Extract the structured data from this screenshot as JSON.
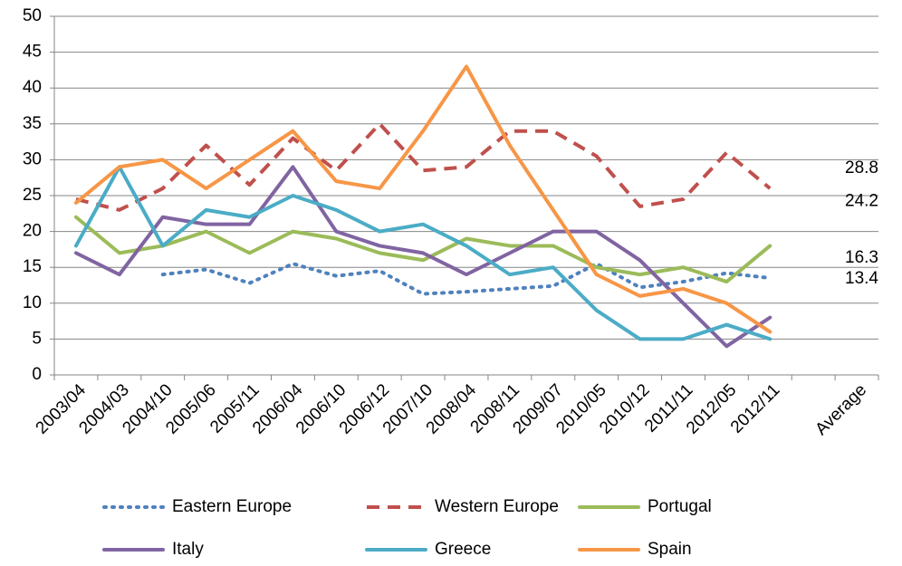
{
  "chart_data": {
    "type": "line",
    "categories": [
      "2003/04",
      "2004/03",
      "2004/10",
      "2005/06",
      "2005/11",
      "2006/04",
      "2006/10",
      "2006/12",
      "2007/10",
      "2008/04",
      "2008/11",
      "2009/07",
      "2010/05",
      "2010/12",
      "2011/11",
      "2012/05",
      "2012/11",
      null,
      "Average"
    ],
    "ylim": [
      0,
      50
    ],
    "yticks": [
      0,
      5,
      10,
      15,
      20,
      25,
      30,
      35,
      40,
      45,
      50
    ],
    "grid": true,
    "series": [
      {
        "name": "Eastern Europe",
        "color": "#4f81bd",
        "dash": "dotted",
        "values": [
          null,
          null,
          14,
          14.7,
          12.8,
          15.5,
          13.8,
          14.5,
          11.3,
          11.6,
          12,
          12.4,
          15.5,
          12.2,
          13,
          14.2,
          13.5,
          null,
          13.4
        ]
      },
      {
        "name": "Western Europe",
        "color": "#c0504d",
        "dash": "dashed",
        "values": [
          24.5,
          23,
          26,
          32,
          26.5,
          33,
          28.5,
          35,
          28.5,
          29,
          34,
          34,
          30.5,
          23.5,
          24.5,
          31,
          26,
          null,
          28.8
        ]
      },
      {
        "name": "Portugal",
        "color": "#9bbb59",
        "dash": "solid",
        "values": [
          22,
          17,
          18,
          20,
          17,
          20,
          19,
          17,
          16,
          19,
          18,
          18,
          15,
          14,
          15,
          13,
          18,
          null,
          null
        ]
      },
      {
        "name": "Italy",
        "color": "#8064a2",
        "dash": "solid",
        "values": [
          17,
          14,
          22,
          21,
          21,
          29,
          20,
          18,
          17,
          14,
          17,
          20,
          20,
          16,
          10,
          4,
          8,
          null,
          null
        ]
      },
      {
        "name": "Greece",
        "color": "#4bacc6",
        "dash": "solid",
        "values": [
          18,
          29,
          18,
          23,
          22,
          25,
          23,
          20,
          21,
          18,
          14,
          15,
          9,
          5,
          5,
          7,
          5,
          null,
          16.3
        ]
      },
      {
        "name": "Spain",
        "color": "#f79646",
        "dash": "solid",
        "values": [
          24,
          29,
          30,
          26,
          30,
          34,
          27,
          26,
          34,
          43,
          32,
          23,
          14,
          11,
          12,
          10,
          6,
          null,
          24.2
        ]
      }
    ]
  }
}
